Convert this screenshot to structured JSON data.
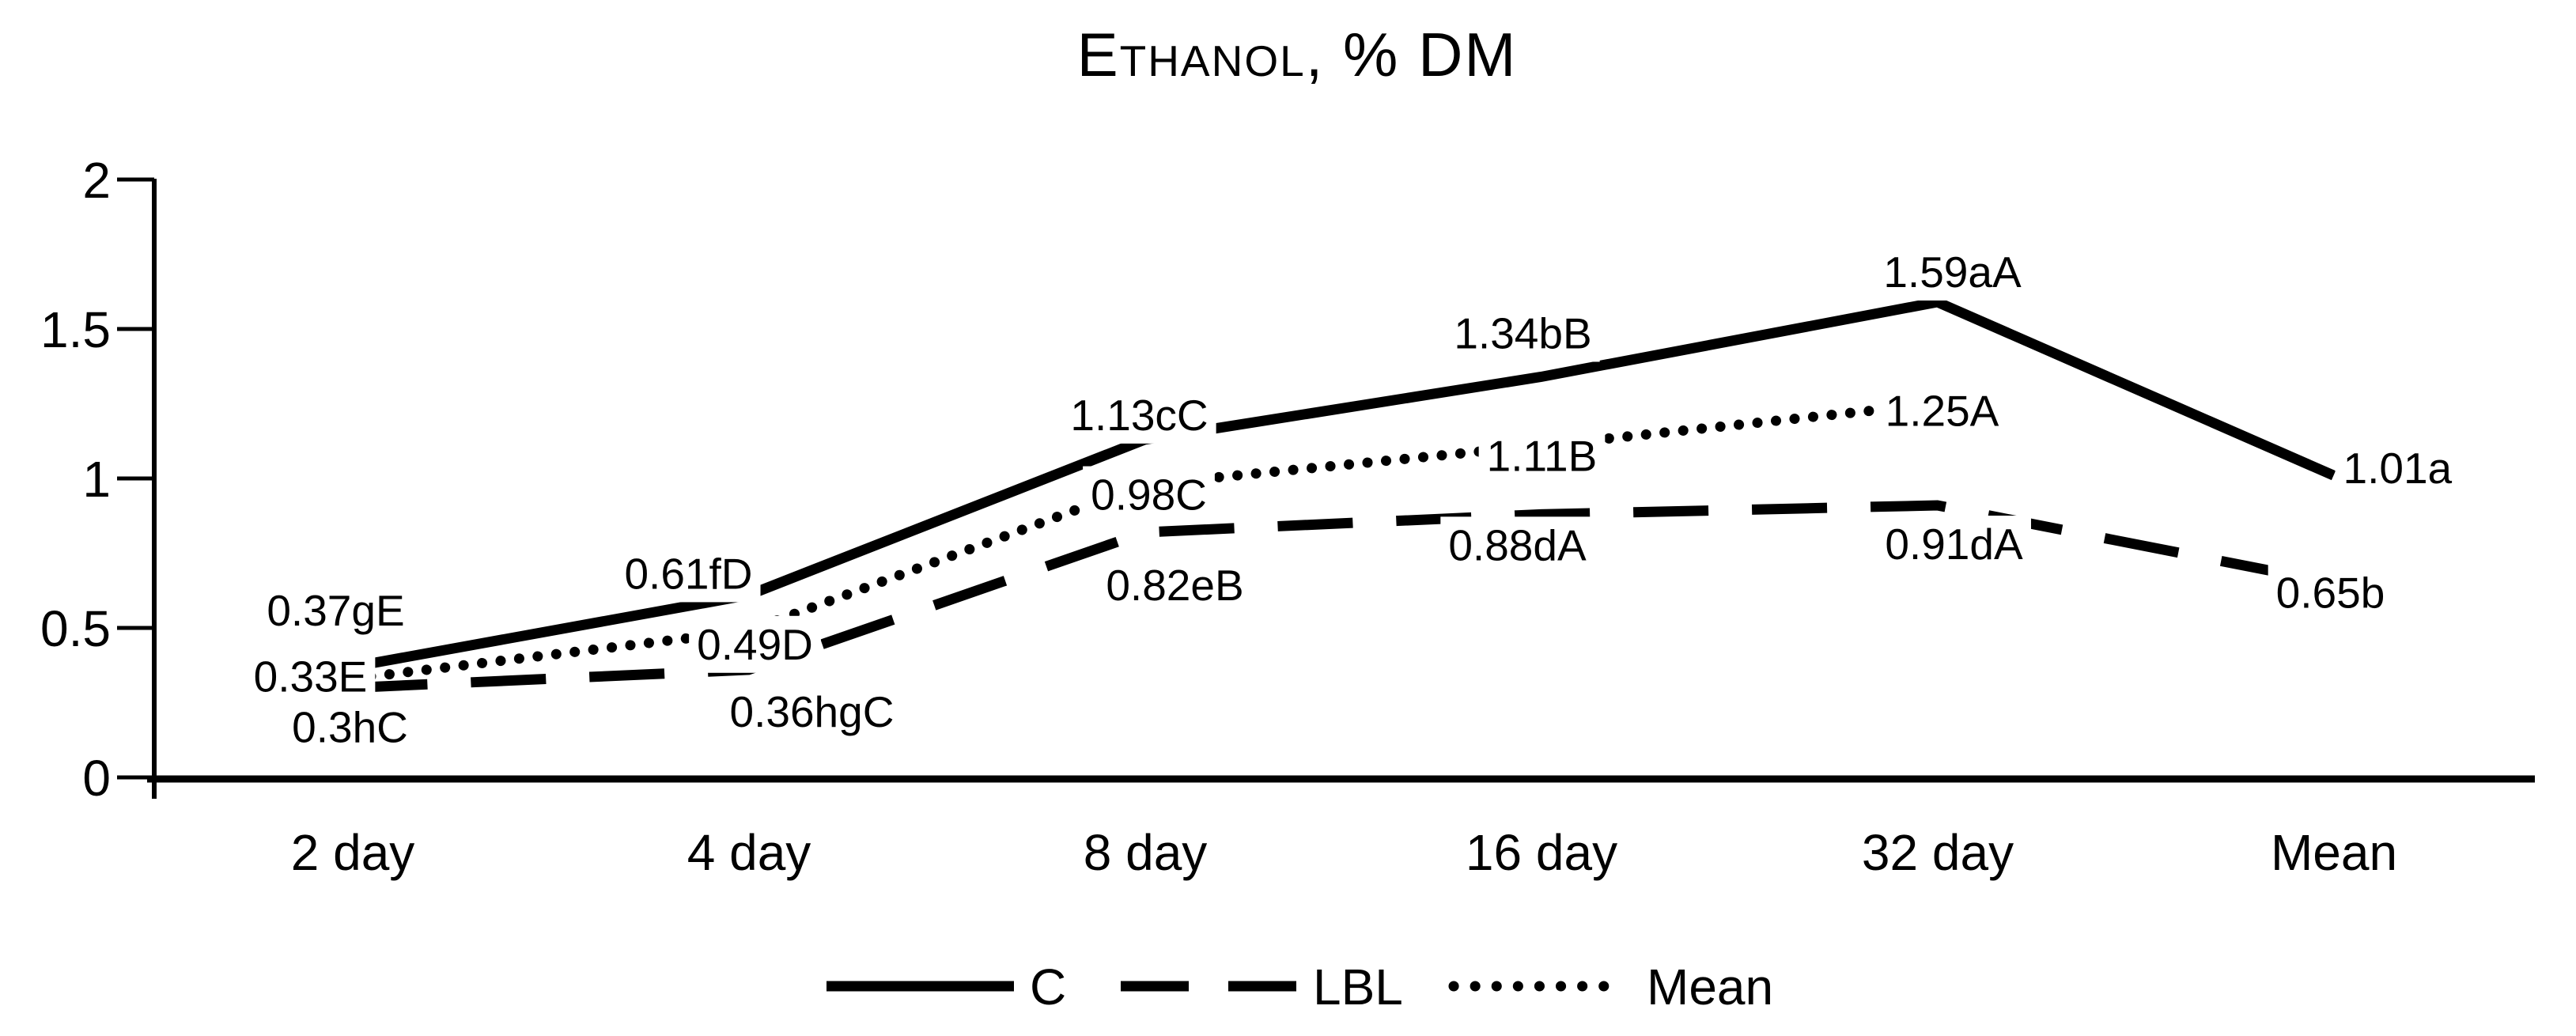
{
  "title": "Ethanol, % DM",
  "chart_data": {
    "type": "line",
    "title": "Ethanol, % DM",
    "categories": [
      "2 day",
      "4 day",
      "8 day",
      "16 day",
      "32 day",
      "Mean"
    ],
    "series": [
      {
        "name": "C",
        "line_style": "solid",
        "values": [
          0.37,
          0.61,
          1.13,
          1.34,
          1.59,
          1.01
        ],
        "point_labels": [
          "0.37gE",
          "0.61fD",
          "1.13cC",
          "1.34bB",
          "1.59aA",
          "1.01a"
        ]
      },
      {
        "name": "LBL",
        "line_style": "dashed",
        "values": [
          0.3,
          0.36,
          0.82,
          0.88,
          0.91,
          0.65
        ],
        "point_labels": [
          "0.3hC",
          "0.36hgC",
          "0.82eB",
          "0.88dA",
          "0.91dA",
          "0.65b"
        ]
      },
      {
        "name": "Mean",
        "line_style": "dotted",
        "values": [
          0.33,
          0.49,
          0.98,
          1.11,
          1.25,
          null
        ],
        "point_labels": [
          "0.33E",
          "0.49D",
          "0.98C",
          "1.11B",
          "1.25A",
          null
        ]
      }
    ],
    "ylim": [
      0,
      2
    ],
    "ytick_labels": [
      "0",
      "0.5",
      "1",
      "1.5",
      "2"
    ],
    "xlabel": "",
    "ylabel": "",
    "grid": false,
    "legend_position": "bottom",
    "line_color": "#000000",
    "background_color": "#ffffff"
  }
}
